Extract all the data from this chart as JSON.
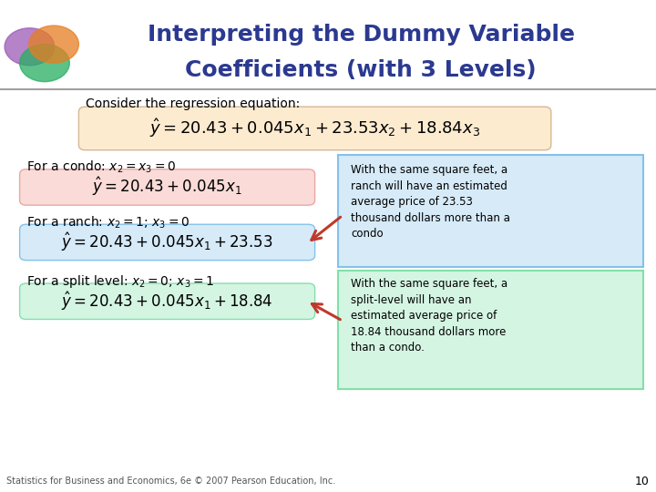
{
  "title_line1": "Interpreting the Dummy Variable",
  "title_line2": "Coefficients (with 3 Levels)",
  "title_color": "#2B3990",
  "bg_color": "#FFFFFF",
  "header_line_color": "#A0A0A0",
  "consider_text": "Consider the regression equation:",
  "main_eq": "$\\hat{y} = 20.43 + 0.045x_1 + 23.53x_2 + 18.84x_3$",
  "main_eq_bg": "#FDEBD0",
  "condo_label": "For a condo: $x_2 = x_3 = 0$",
  "condo_eq": "$\\hat{y} = 20.43 + 0.045x_1$",
  "condo_eq_bg": "#FADBD8",
  "ranch_label": "For a ranch: $x_2 = 1$; $x_3 = 0$",
  "ranch_eq": "$\\hat{y} = 20.43 + 0.045x_1 + 23.53$",
  "ranch_eq_bg": "#D6EAF8",
  "split_label": "For a split level: $x_2 = 0$; $x_3 = 1$",
  "split_eq": "$\\hat{y} = 20.43 + 0.045x_1 + 18.84$",
  "split_eq_bg": "#D5F5E3",
  "box1_text": "With the same square feet, a\nranch will have an estimated\naverage price of 23.53\nthousand dollars more than a\ncondo",
  "box1_bg": "#D6EAF8",
  "box1_border": "#85C1E9",
  "box2_text": "With the same square feet, a\nsplit-level will have an\nestimated average price of\n18.84 thousand dollars more\nthan a condo.",
  "box2_bg": "#D5F5E3",
  "box2_border": "#82E0AA",
  "footer_text": "Statistics for Business and Economics, 6e © 2007 Pearson Education, Inc.",
  "page_num": "10",
  "arrow_color": "#C0392B"
}
